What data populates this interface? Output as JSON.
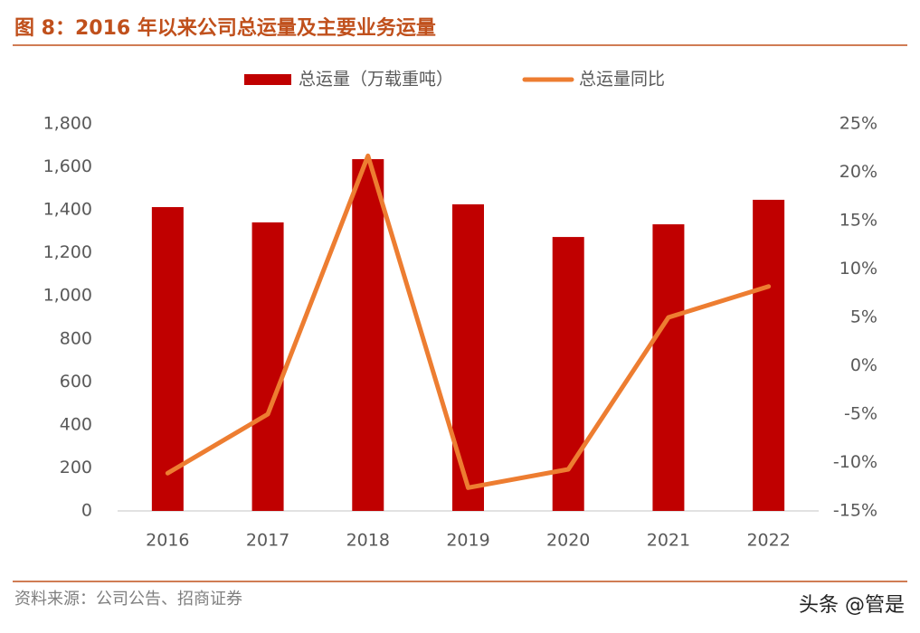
{
  "title": "图 8：2016 年以来公司总运量及主要业务运量",
  "chart_data": {
    "type": "combo",
    "categories": [
      "2016",
      "2017",
      "2018",
      "2019",
      "2020",
      "2021",
      "2022"
    ],
    "series": [
      {
        "name": "总运量（万载重吨）",
        "type": "bar",
        "color": "#c00000",
        "values": [
          1413,
          1342,
          1636,
          1426,
          1274,
          1333,
          1447
        ]
      },
      {
        "name": "总运量同比",
        "type": "line",
        "axis": "y2",
        "color": "#ed7d31",
        "values": [
          -11.1,
          -5.0,
          21.7,
          -12.6,
          -10.7,
          5.0,
          8.2
        ]
      }
    ],
    "ylim": [
      0,
      1800
    ],
    "yticks": [
      0,
      200,
      400,
      600,
      800,
      {
        "value": 1000,
        "label": "1,000"
      },
      {
        "value": 1200,
        "label": "1,200"
      },
      {
        "value": 1400,
        "label": "1,400"
      },
      {
        "value": 1600,
        "label": "1,600"
      },
      {
        "value": 1800,
        "label": "1,800"
      }
    ],
    "y2lim": [
      -15,
      25
    ],
    "y2ticks": [
      {
        "value": -15,
        "label": "-15%"
      },
      {
        "value": -10,
        "label": "-10%"
      },
      {
        "value": -5,
        "label": "-5%"
      },
      {
        "value": 0,
        "label": "0%"
      },
      {
        "value": 5,
        "label": "5%"
      },
      {
        "value": 10,
        "label": "10%"
      },
      {
        "value": 15,
        "label": "15%"
      },
      {
        "value": 20,
        "label": "20%"
      },
      {
        "value": 25,
        "label": "25%"
      }
    ],
    "legend": "top",
    "grid": false
  },
  "source": "资料来源：公司公告、招商证券",
  "watermark": "头条 @管是"
}
